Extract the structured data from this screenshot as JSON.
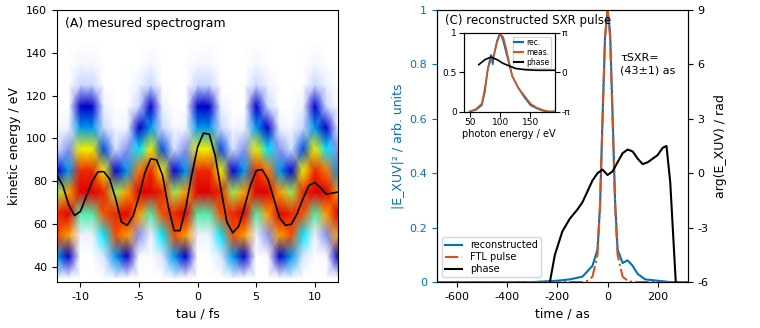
{
  "chart_data": [
    {
      "type": "heatmap",
      "title": "(A) mesured spectrogram",
      "x_label": "tau / fs",
      "y_label": "kinetic energy / eV",
      "x": [
        -12,
        -11,
        -10,
        -9,
        -8,
        -7,
        -6,
        -5,
        -4,
        -3,
        -2,
        -1,
        0,
        1,
        2,
        3,
        4,
        5,
        6,
        7,
        8,
        9,
        10,
        11,
        12
      ],
      "y": [
        35,
        45,
        55,
        65,
        75,
        85,
        95,
        105,
        115,
        125,
        135,
        145,
        155
      ],
      "cells": [
        [
          0.05,
          0.02,
          0,
          0,
          0,
          0.05,
          0.02,
          0,
          0,
          0,
          0.05,
          0.02,
          0,
          0,
          0,
          0.05,
          0.02,
          0,
          0,
          0.02,
          0.05,
          0,
          0,
          0,
          0.02
        ],
        [
          0.4,
          0.3,
          0,
          0,
          0.1,
          0.4,
          0.3,
          0.02,
          0,
          0.1,
          0.4,
          0.3,
          0,
          0,
          0.1,
          0.4,
          0.3,
          0,
          0.02,
          0.3,
          0.4,
          0.1,
          0,
          0.02,
          0.3
        ],
        [
          0.8,
          0.7,
          0.05,
          0.05,
          0.45,
          0.8,
          0.7,
          0.2,
          0.05,
          0.45,
          0.8,
          0.7,
          0.05,
          0.05,
          0.45,
          0.8,
          0.7,
          0.05,
          0.2,
          0.7,
          0.8,
          0.45,
          0.05,
          0.2,
          0.7
        ],
        [
          0.85,
          0.9,
          0.5,
          0.5,
          0.8,
          0.85,
          0.9,
          0.7,
          0.5,
          0.8,
          0.85,
          0.9,
          0.5,
          0.5,
          0.8,
          0.85,
          0.9,
          0.5,
          0.7,
          0.9,
          0.85,
          0.8,
          0.5,
          0.7,
          0.9
        ],
        [
          0.55,
          0.7,
          0.9,
          0.9,
          0.85,
          0.55,
          0.7,
          0.9,
          0.9,
          0.85,
          0.55,
          0.7,
          0.9,
          0.9,
          0.85,
          0.55,
          0.7,
          0.9,
          0.9,
          0.7,
          0.55,
          0.85,
          0.9,
          0.9,
          0.7
        ],
        [
          0.3,
          0.4,
          0.85,
          0.85,
          0.6,
          0.3,
          0.4,
          0.75,
          0.85,
          0.6,
          0.3,
          0.4,
          0.85,
          0.85,
          0.6,
          0.3,
          0.4,
          0.85,
          0.75,
          0.4,
          0.3,
          0.6,
          0.85,
          0.75,
          0.4
        ],
        [
          0.12,
          0.2,
          0.6,
          0.6,
          0.35,
          0.12,
          0.2,
          0.45,
          0.6,
          0.35,
          0.12,
          0.2,
          0.6,
          0.6,
          0.35,
          0.12,
          0.2,
          0.6,
          0.45,
          0.2,
          0.12,
          0.35,
          0.6,
          0.45,
          0.2
        ],
        [
          0.02,
          0.05,
          0.4,
          0.4,
          0.15,
          0.02,
          0.05,
          0.3,
          0.4,
          0.15,
          0.02,
          0.05,
          0.4,
          0.4,
          0.15,
          0.02,
          0.05,
          0.4,
          0.3,
          0.05,
          0.02,
          0.15,
          0.4,
          0.3,
          0.05
        ],
        [
          0,
          0,
          0.3,
          0.3,
          0.05,
          0,
          0,
          0.15,
          0.3,
          0.05,
          0,
          0,
          0.3,
          0.3,
          0.05,
          0,
          0,
          0.3,
          0.15,
          0,
          0,
          0.05,
          0.3,
          0.15,
          0
        ],
        [
          0,
          0,
          0.15,
          0.15,
          0,
          0,
          0,
          0.05,
          0.15,
          0,
          0,
          0,
          0.15,
          0.15,
          0,
          0,
          0,
          0.15,
          0.05,
          0,
          0,
          0,
          0.15,
          0.05,
          0
        ],
        [
          0,
          0,
          0.03,
          0.03,
          0,
          0,
          0,
          0,
          0.03,
          0,
          0,
          0,
          0.03,
          0.03,
          0,
          0,
          0,
          0.03,
          0,
          0,
          0,
          0,
          0.03,
          0,
          0
        ],
        [
          0,
          0,
          0,
          0,
          0,
          0,
          0,
          0,
          0,
          0,
          0,
          0,
          0,
          0,
          0,
          0,
          0,
          0,
          0,
          0,
          0,
          0,
          0,
          0,
          0
        ],
        [
          0,
          0,
          0,
          0,
          0,
          0,
          0,
          0,
          0,
          0,
          0,
          0,
          0,
          0,
          0,
          0,
          0,
          0,
          0,
          0,
          0,
          0,
          0,
          0,
          0
        ]
      ],
      "xlim": [
        -12,
        12
      ],
      "ylim": [
        33,
        160
      ],
      "xticks": [
        -10,
        -5,
        0,
        5,
        10
      ],
      "yticks": [
        40,
        60,
        80,
        100,
        120,
        140,
        160
      ],
      "series": [
        {
          "type": "line",
          "color": "#000000",
          "x": [
            -12.0,
            -11.5,
            -11.0,
            -10.5,
            -10.0,
            -9.5,
            -9.0,
            -8.5,
            -8.0,
            -7.5,
            -7.0,
            -6.5,
            -6.0,
            -5.5,
            -5.0,
            -4.5,
            -4.0,
            -3.5,
            -3.0,
            -2.5,
            -2.0,
            -1.5,
            -1.0,
            -0.5,
            0.0,
            0.5,
            1.0,
            1.5,
            2.0,
            2.5,
            3.0,
            3.5,
            4.0,
            4.5,
            5.0,
            5.5,
            6.0,
            6.5,
            7.0,
            7.5,
            8.0,
            8.5,
            9.0,
            9.5,
            10.0,
            10.5,
            11.0,
            11.5,
            12.0
          ],
          "values": [
            82.8,
            78,
            69,
            64,
            66,
            73,
            80,
            84.5,
            84.5,
            81,
            72,
            61,
            59.5,
            64,
            73,
            84,
            90.5,
            90,
            83,
            68,
            57,
            57,
            68,
            83,
            96,
            102.5,
            102,
            92,
            76,
            61,
            56,
            59,
            68,
            78,
            85,
            85.5,
            81,
            72,
            63,
            59.5,
            60,
            65,
            72,
            78,
            79.5,
            77,
            74,
            74.5,
            75
          ]
        }
      ]
    },
    {
      "type": "line",
      "title": "(C) reconstructed SXR pulse",
      "x_label": "time / as",
      "y_label": "|E_XUV|² / arb. units",
      "y2_label": "arg(E_XUV) / rad",
      "annotation": "τSXR=\n(43±1) as",
      "x": [
        -680,
        -300,
        -200,
        -150,
        -100,
        -80,
        -60,
        -40,
        -30,
        -20,
        -10,
        0,
        10,
        20,
        30,
        40,
        60,
        80,
        100,
        120,
        150,
        200,
        250,
        320
      ],
      "series": [
        {
          "name": "reconstructed",
          "color": "#0072bd",
          "line_style": "solid",
          "values": [
            0,
            0,
            0.005,
            0.01,
            0.02,
            0.04,
            0.06,
            0.12,
            0.28,
            0.6,
            0.9,
            1.0,
            0.92,
            0.62,
            0.3,
            0.12,
            0.07,
            0.08,
            0.06,
            0.03,
            0.01,
            0.005,
            0,
            0
          ]
        },
        {
          "name": "FTL pulse",
          "color": "#d95319",
          "line_style": "dashdot",
          "values": [
            0,
            0,
            0,
            0,
            0,
            0.005,
            0.02,
            0.1,
            0.28,
            0.6,
            0.9,
            1.0,
            0.9,
            0.6,
            0.28,
            0.1,
            0.02,
            0.005,
            0,
            0,
            0,
            0,
            0,
            0
          ]
        },
        {
          "name": "phase",
          "color": "#000000",
          "line_style": "solid",
          "axis": "y2",
          "x": [
            -230,
            -210,
            -180,
            -150,
            -120,
            -100,
            -80,
            -60,
            -40,
            -20,
            0,
            20,
            40,
            60,
            80,
            100,
            120,
            140,
            160,
            180,
            200,
            220,
            235,
            250,
            262,
            272
          ],
          "values": [
            -6,
            -4.5,
            -3.2,
            -2.5,
            -2,
            -1.6,
            -1,
            -0.4,
            0,
            0.2,
            -0.1,
            0.1,
            0.6,
            1.1,
            1.3,
            1.2,
            0.8,
            0.5,
            0.6,
            0.8,
            1.0,
            1.4,
            1.5,
            -0.5,
            -3.5,
            -6
          ]
        }
      ],
      "xlim": [
        -680,
        320
      ],
      "ylim": [
        0,
        1
      ],
      "y2lim": [
        -6,
        9
      ],
      "xticks": [
        -600,
        -400,
        -200,
        0,
        200
      ],
      "yticks": [
        0,
        0.2,
        0.4,
        0.6,
        0.8,
        1
      ],
      "y2ticks": [
        -6,
        -3,
        0,
        3,
        6,
        9
      ],
      "legend": "lower left"
    },
    {
      "type": "line",
      "x_label": "photon energy / eV",
      "x": [
        50,
        60,
        70,
        75,
        80,
        85,
        88,
        90,
        95,
        100,
        105,
        110,
        115,
        120,
        130,
        140,
        150,
        160,
        170,
        180,
        190
      ],
      "series": [
        {
          "name": "rec.",
          "color": "#0072bd",
          "line_style": "solid",
          "values": [
            0,
            0.02,
            0.08,
            0.25,
            0.55,
            0.72,
            0.6,
            0.72,
            0.9,
            1.0,
            0.9,
            0.75,
            0.6,
            0.45,
            0.3,
            0.18,
            0.08,
            0.04,
            0.01,
            0,
            0
          ]
        },
        {
          "name": "meas.",
          "color": "#d95319",
          "line_style": "solid",
          "values": [
            0,
            0.03,
            0.1,
            0.3,
            0.55,
            0.65,
            0.7,
            0.72,
            0.88,
            0.98,
            0.95,
            0.8,
            0.62,
            0.45,
            0.3,
            0.2,
            0.1,
            0.05,
            0.02,
            0,
            0
          ]
        },
        {
          "name": "phase",
          "color": "#000000",
          "line_style": "solid",
          "axis": "y2",
          "x": [
            65,
            75,
            85,
            95,
            105,
            115,
            125,
            140,
            160,
            190
          ],
          "values": [
            0.6,
            1.0,
            1.2,
            1.0,
            0.7,
            0.5,
            0.3,
            0.2,
            0.15,
            0.15
          ]
        }
      ],
      "xlim": [
        40,
        190
      ],
      "ylim": [
        0,
        1
      ],
      "y2lim": [
        -3.14159,
        3.14159
      ],
      "xticks": [
        50,
        100,
        150
      ],
      "yticks": [
        0,
        0.5,
        1
      ],
      "y2ticks": [
        {
          "value": -3.14159,
          "label": "-π"
        },
        0,
        {
          "value": 3.14159,
          "label": "π"
        }
      ],
      "legend": "upper right"
    }
  ]
}
